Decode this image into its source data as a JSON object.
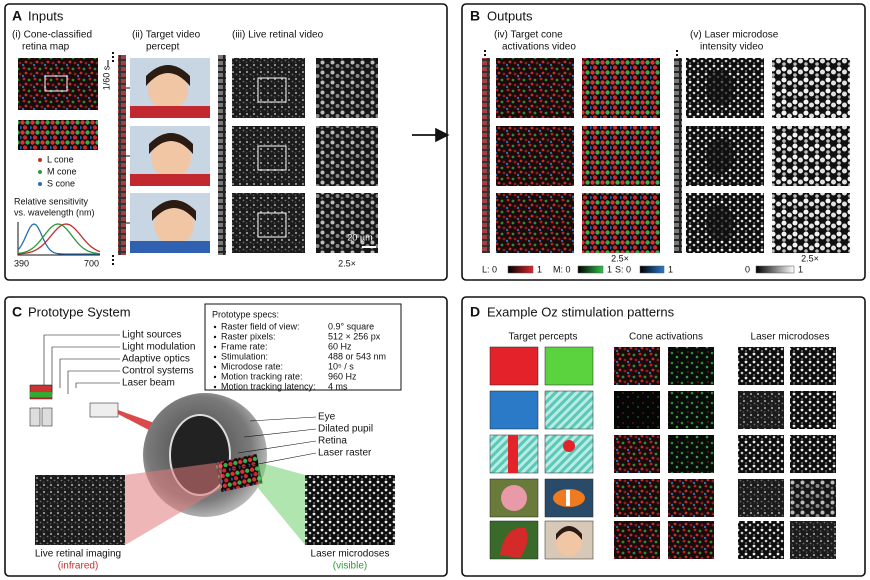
{
  "panels": {
    "A": {
      "label": "A",
      "title": "Inputs",
      "retina_map": [
        "(i) Cone-classified",
        "retina map"
      ],
      "target_video": [
        "(ii) Target video",
        "percept"
      ],
      "live_video": "(iii) Live retinal video",
      "cone_legend": [
        "L cone",
        "M cone",
        "S cone"
      ],
      "sensitivity_label": [
        "Relative sensitivity",
        "vs. wavelength (nm)"
      ],
      "wavelength_min": "390",
      "wavelength_max": "700",
      "frame_interval": "1/60 s",
      "scale_bar": "20 µm",
      "zoom": "2.5×"
    },
    "B": {
      "label": "B",
      "title": "Outputs",
      "cone_video": [
        "(iv) Target cone",
        "activations video"
      ],
      "laser_video": [
        "(v) Laser microdose",
        "intensity video"
      ],
      "zoom_cone": "2.5×",
      "zoom_laser": "2.5×",
      "colorbars": [
        {
          "min": "L: 0",
          "max": "1"
        },
        {
          "min": "M: 0",
          "max": "1"
        },
        {
          "min": "S: 0",
          "max": "1"
        },
        {
          "min": "0",
          "max": "1"
        }
      ]
    },
    "C": {
      "label": "C",
      "title": "Prototype System",
      "components": [
        "Light sources",
        "Light modulation",
        "Adaptive optics",
        "Control systems",
        "Laser beam"
      ],
      "specs_title": "Prototype specs:",
      "specs": [
        {
          "name": "Raster field of view:",
          "value": "0.9° square"
        },
        {
          "name": "Raster pixels:",
          "value": "512 × 256 px"
        },
        {
          "name": "Frame rate:",
          "value": "60 Hz"
        },
        {
          "name": "Stimulation:",
          "value": "488 or 543 nm"
        },
        {
          "name": "Microdose rate:",
          "value": "10⁵ / s"
        },
        {
          "name": "Motion tracking rate:",
          "value": "960 Hz"
        },
        {
          "name": "Motion tracking latency:",
          "value": "4 ms"
        }
      ],
      "eye_parts": [
        "Eye",
        "Dilated pupil",
        "Retina",
        "Laser raster"
      ],
      "imaging": {
        "label": "Live retinal imaging",
        "note": "(infrared)"
      },
      "microdoses": {
        "label": "Laser microdoses",
        "note": "(visible)"
      }
    },
    "D": {
      "label": "D",
      "title": "Example Oz stimulation patterns",
      "columns": [
        "Target percepts",
        "Cone activations",
        "Laser microdoses"
      ]
    }
  }
}
